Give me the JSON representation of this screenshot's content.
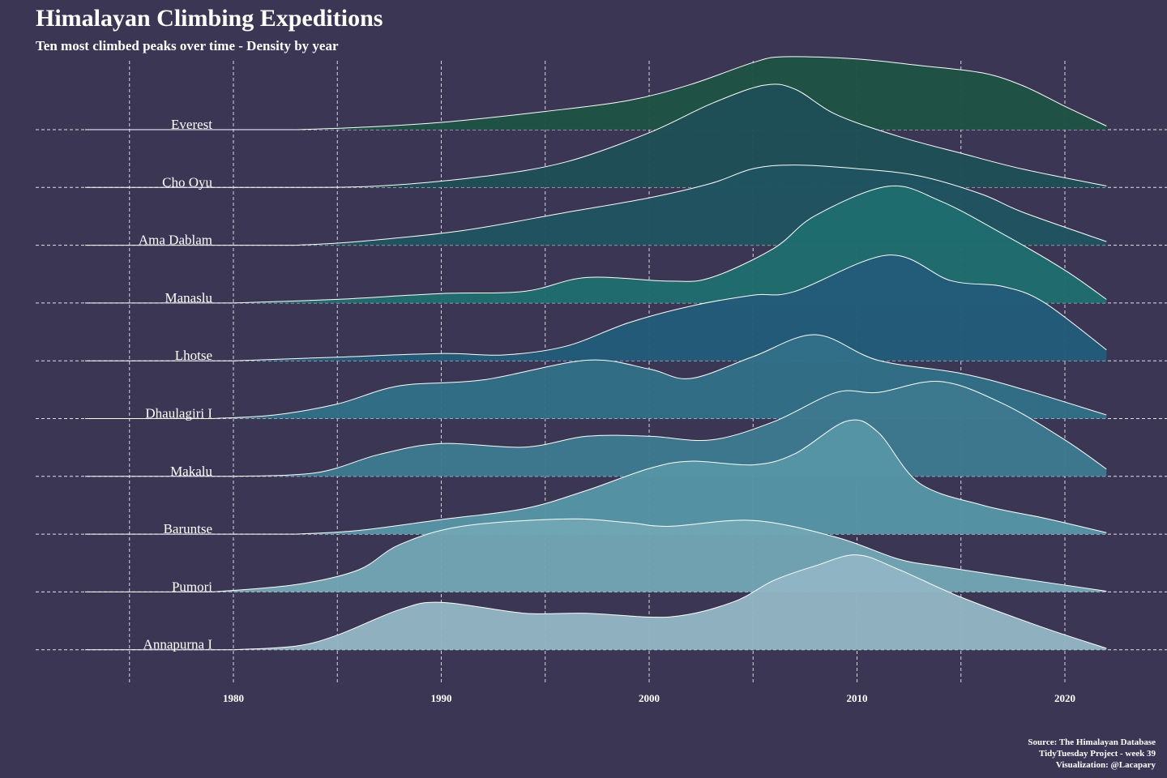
{
  "chart_data": {
    "type": "ridgeline",
    "title": "Himalayan Climbing Expeditions",
    "subtitle": "Ten most climbed peaks over time - Density by year",
    "xlim": [
      1970,
      2025
    ],
    "x_ticks": [
      "1980",
      "1990",
      "2000",
      "2010",
      "2020"
    ],
    "x_tick_values": [
      1980,
      1990,
      2000,
      2010,
      2020
    ],
    "grid": "dashed",
    "caption": [
      "Source: The Himalayan Database",
      "TidyTuesday Project - week 39",
      "Visualization: @Lacapary"
    ],
    "density_scale_max": 1.0,
    "series": [
      {
        "name": "Everest",
        "color": "#1e5444",
        "points": [
          [
            1983,
            0
          ],
          [
            1986,
            0.03
          ],
          [
            1990,
            0.1
          ],
          [
            1995,
            0.25
          ],
          [
            1999,
            0.4
          ],
          [
            2002,
            0.62
          ],
          [
            2005,
            0.92
          ],
          [
            2006.5,
            1.0
          ],
          [
            2010,
            0.97
          ],
          [
            2013,
            0.88
          ],
          [
            2016,
            0.78
          ],
          [
            2018,
            0.6
          ],
          [
            2020,
            0.32
          ],
          [
            2022,
            0.05
          ]
        ]
      },
      {
        "name": "Cho Oyu",
        "color": "#1f4f57",
        "points": [
          [
            1983,
            0
          ],
          [
            1987,
            0.02
          ],
          [
            1992,
            0.15
          ],
          [
            1996,
            0.35
          ],
          [
            2000,
            0.75
          ],
          [
            2003,
            1.15
          ],
          [
            2005.5,
            1.4
          ],
          [
            2007,
            1.35
          ],
          [
            2009,
            1.0
          ],
          [
            2012,
            0.7
          ],
          [
            2015,
            0.47
          ],
          [
            2018,
            0.25
          ],
          [
            2022,
            0.02
          ]
        ]
      },
      {
        "name": "Ama Dablam",
        "color": "#1f5460",
        "points": [
          [
            1983,
            0
          ],
          [
            1986,
            0.05
          ],
          [
            1991,
            0.2
          ],
          [
            1996,
            0.45
          ],
          [
            2000,
            0.65
          ],
          [
            2003,
            0.85
          ],
          [
            2005,
            1.05
          ],
          [
            2007,
            1.1
          ],
          [
            2010,
            1.05
          ],
          [
            2013,
            0.95
          ],
          [
            2016,
            0.7
          ],
          [
            2018,
            0.45
          ],
          [
            2022,
            0.05
          ]
        ]
      },
      {
        "name": "Manaslu",
        "color": "#1f6d6f",
        "points": [
          [
            1980,
            0
          ],
          [
            1985,
            0.05
          ],
          [
            1990,
            0.13
          ],
          [
            1994,
            0.16
          ],
          [
            1997,
            0.35
          ],
          [
            2001,
            0.3
          ],
          [
            2003,
            0.35
          ],
          [
            2006,
            0.75
          ],
          [
            2008,
            1.2
          ],
          [
            2011.5,
            1.6
          ],
          [
            2014,
            1.4
          ],
          [
            2017,
            0.95
          ],
          [
            2020,
            0.45
          ],
          [
            2022,
            0.05
          ]
        ]
      },
      {
        "name": "Lhotse",
        "color": "#225c7a",
        "points": [
          [
            1980,
            0
          ],
          [
            1985,
            0.05
          ],
          [
            1990,
            0.1
          ],
          [
            1993,
            0.08
          ],
          [
            1996,
            0.2
          ],
          [
            1999,
            0.52
          ],
          [
            2002,
            0.75
          ],
          [
            2005,
            0.9
          ],
          [
            2007,
            0.95
          ],
          [
            2011.5,
            1.45
          ],
          [
            2014.5,
            1.1
          ],
          [
            2017,
            1.02
          ],
          [
            2019,
            0.8
          ],
          [
            2022,
            0.15
          ]
        ]
      },
      {
        "name": "Dhaulagiri I",
        "color": "#326f88",
        "points": [
          [
            1979,
            0
          ],
          [
            1982,
            0.05
          ],
          [
            1985,
            0.2
          ],
          [
            1988,
            0.45
          ],
          [
            1992,
            0.53
          ],
          [
            1997,
            0.8
          ],
          [
            2000,
            0.68
          ],
          [
            2002,
            0.55
          ],
          [
            2005,
            0.85
          ],
          [
            2008,
            1.15
          ],
          [
            2011,
            0.8
          ],
          [
            2015,
            0.62
          ],
          [
            2018,
            0.4
          ],
          [
            2022,
            0.05
          ]
        ]
      },
      {
        "name": "Makalu",
        "color": "#3d7a90",
        "points": [
          [
            1980,
            0
          ],
          [
            1984,
            0.05
          ],
          [
            1987,
            0.3
          ],
          [
            1990,
            0.45
          ],
          [
            1994,
            0.4
          ],
          [
            1997,
            0.55
          ],
          [
            2000,
            0.55
          ],
          [
            2003,
            0.5
          ],
          [
            2006,
            0.75
          ],
          [
            2009,
            1.15
          ],
          [
            2011,
            1.15
          ],
          [
            2014,
            1.3
          ],
          [
            2017,
            1.0
          ],
          [
            2020,
            0.5
          ],
          [
            2022,
            0.1
          ]
        ]
      },
      {
        "name": "Baruntse",
        "color": "#5595a6",
        "points": [
          [
            1983,
            0
          ],
          [
            1986,
            0.05
          ],
          [
            1990,
            0.2
          ],
          [
            1994,
            0.35
          ],
          [
            1997,
            0.6
          ],
          [
            2000,
            0.9
          ],
          [
            2002,
            1.0
          ],
          [
            2005,
            0.95
          ],
          [
            2007,
            1.1
          ],
          [
            2009.5,
            1.55
          ],
          [
            2011,
            1.4
          ],
          [
            2013,
            0.7
          ],
          [
            2016,
            0.4
          ],
          [
            2019,
            0.22
          ],
          [
            2022,
            0.02
          ]
        ]
      },
      {
        "name": "Pumori",
        "color": "#72a5b4",
        "points": [
          [
            1979,
            0
          ],
          [
            1983,
            0.1
          ],
          [
            1986,
            0.3
          ],
          [
            1988,
            0.65
          ],
          [
            1991,
            0.9
          ],
          [
            1996,
            1.0
          ],
          [
            1999,
            0.95
          ],
          [
            2001,
            0.9
          ],
          [
            2005,
            0.98
          ],
          [
            2009,
            0.75
          ],
          [
            2012,
            0.45
          ],
          [
            2014,
            0.35
          ],
          [
            2017,
            0.22
          ],
          [
            2022,
            0.01
          ]
        ]
      },
      {
        "name": "Annapurna I",
        "color": "#91b5c3",
        "points": [
          [
            1980,
            0
          ],
          [
            1983,
            0.05
          ],
          [
            1985,
            0.2
          ],
          [
            1988,
            0.55
          ],
          [
            1990,
            0.65
          ],
          [
            1994,
            0.5
          ],
          [
            1997,
            0.5
          ],
          [
            2001,
            0.45
          ],
          [
            2004,
            0.65
          ],
          [
            2006,
            0.95
          ],
          [
            2008,
            1.15
          ],
          [
            2010,
            1.3
          ],
          [
            2012,
            1.1
          ],
          [
            2015,
            0.72
          ],
          [
            2019,
            0.3
          ],
          [
            2022,
            0.02
          ]
        ]
      }
    ]
  }
}
